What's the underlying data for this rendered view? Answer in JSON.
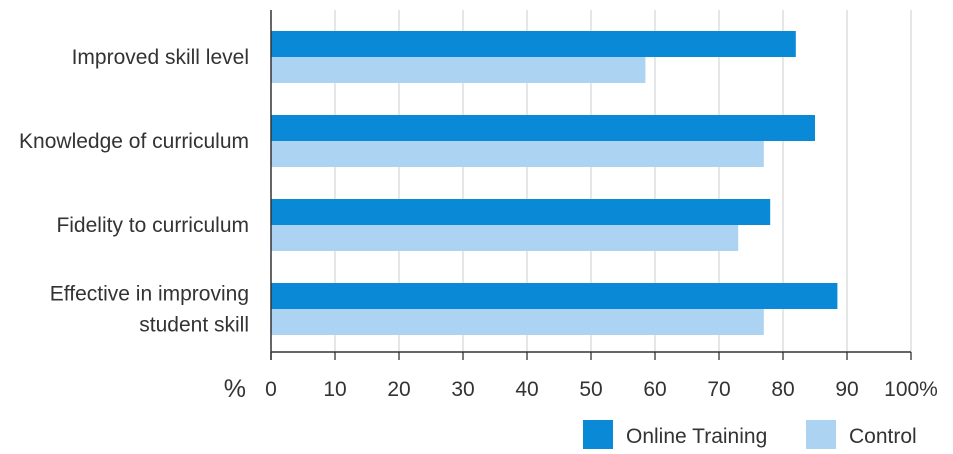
{
  "chart_data": {
    "type": "bar",
    "orientation": "horizontal",
    "categories": [
      [
        "Improved skill level"
      ],
      [
        "Knowledge of curriculum"
      ],
      [
        "Fidelity to curriculum"
      ],
      [
        "Effective in improving",
        "student skill"
      ]
    ],
    "series": [
      {
        "name": "Online Training",
        "values": [
          82,
          85,
          78,
          88.5
        ],
        "color": "#0a8ad6"
      },
      {
        "name": "Control",
        "values": [
          58.5,
          77,
          73,
          77
        ],
        "color": "#acd3f1"
      }
    ],
    "xlim": [
      0,
      100
    ],
    "ticks": [
      "0",
      "10",
      "20",
      "30",
      "40",
      "50",
      "60",
      "70",
      "80",
      "90",
      "100%"
    ],
    "tick_values": [
      0,
      10,
      20,
      30,
      40,
      50,
      60,
      70,
      80,
      90,
      100
    ],
    "unit_label": "%",
    "grid": true,
    "legend_position": "bottom-right",
    "colors": {
      "grid": "#d9d9d9",
      "axis": "#333333",
      "text": "#333333"
    }
  }
}
